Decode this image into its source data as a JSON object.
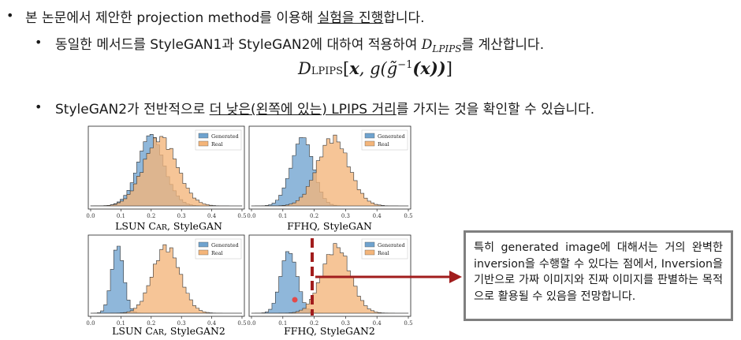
{
  "bullets": {
    "b1": {
      "pre": "본 논문에서 제안한 projection method를 이용해 ",
      "underlined": "실험을 진행",
      "post": "합니다."
    },
    "b2": {
      "pre": "동일한 메서드를 StyleGAN1과 StyleGAN2에 대하여 적용하여 ",
      "sym": "D",
      "sub": "LPIPS",
      "post": "를 계산합니다."
    },
    "b3": {
      "pre": "StyleGAN2가 전반적으로 ",
      "underlined": "더 낮은(왼쪽에 있는) LPIPS 거리",
      "post": "를 가지는 것을 확인할 수 있습니다."
    }
  },
  "formula": {
    "d": "D",
    "sub": "LPIPS",
    "open": "[",
    "x": "x",
    "comma_g": ", g(",
    "gtilde": "g̃",
    "sup": "−1",
    "inner": "(x))",
    "close": "]"
  },
  "chart_data": [
    {
      "type": "histogram",
      "title": "LSUN Car, StyleGAN",
      "x": [
        0.0,
        0.1,
        0.2,
        0.3,
        0.4,
        0.5
      ],
      "xlim": [
        0.0,
        0.5
      ],
      "series": [
        {
          "name": "Generated",
          "color": "#6fa3cf",
          "center": 0.2,
          "spread": 0.045
        },
        {
          "name": "Real",
          "color": "#f4b57a",
          "center": 0.23,
          "spread": 0.055
        }
      ],
      "legend": "top-right"
    },
    {
      "type": "histogram",
      "title": "FFHQ, StyleGAN",
      "x": [
        0.0,
        0.1,
        0.2,
        0.3,
        0.4,
        0.5
      ],
      "xlim": [
        0.0,
        0.5
      ],
      "series": [
        {
          "name": "Generated",
          "color": "#6fa3cf",
          "center": 0.16,
          "spread": 0.035
        },
        {
          "name": "Real",
          "color": "#f4b57a",
          "center": 0.26,
          "spread": 0.05
        }
      ],
      "legend": "top-right"
    },
    {
      "type": "histogram",
      "title": "LSUN Car, StyleGAN2",
      "x": [
        0.0,
        0.1,
        0.2,
        0.3,
        0.4,
        0.5
      ],
      "xlim": [
        0.0,
        0.5
      ],
      "series": [
        {
          "name": "Generated",
          "color": "#6fa3cf",
          "center": 0.09,
          "spread": 0.02
        },
        {
          "name": "Real",
          "color": "#f4b57a",
          "center": 0.25,
          "spread": 0.045
        }
      ],
      "legend": "top-right"
    },
    {
      "type": "histogram",
      "title": "FFHQ, StyleGAN2",
      "x": [
        0.0,
        0.1,
        0.2,
        0.3,
        0.4,
        0.5
      ],
      "xlim": [
        0.0,
        0.5
      ],
      "series": [
        {
          "name": "Generated",
          "color": "#6fa3cf",
          "center": 0.12,
          "spread": 0.025
        },
        {
          "name": "Real",
          "color": "#f4b57a",
          "center": 0.27,
          "spread": 0.045
        }
      ],
      "legend": "top-right",
      "threshold_x": 0.18
    }
  ],
  "chart_titles": {
    "c1a": "LSUN C",
    "c1b": "AR",
    "c1c": ", StyleGAN",
    "c2": "FFHQ, StyleGAN",
    "c3a": "LSUN C",
    "c3b": "AR",
    "c3c": ", StyleGAN2",
    "c4": "FFHQ, StyleGAN2"
  },
  "legend": {
    "gen": "Generated",
    "real": "Real"
  },
  "ticks": [
    "0.0",
    "0.1",
    "0.2",
    "0.3",
    "0.4",
    "0.5"
  ],
  "note": {
    "text": "특히 generated image에 대해서는 거의 완벽한 inversion을 수행할 수 있다는 점에서, Inversion을 기반으로 가짜 이미지와 진짜 이미지를 판별하는 목적으로 활용될 수 있음을 전망합니다."
  },
  "colors": {
    "generated": "#6fa3cf",
    "real": "#f4b57a",
    "arrow": "#a11d1d",
    "border": "#7f7f7f"
  }
}
